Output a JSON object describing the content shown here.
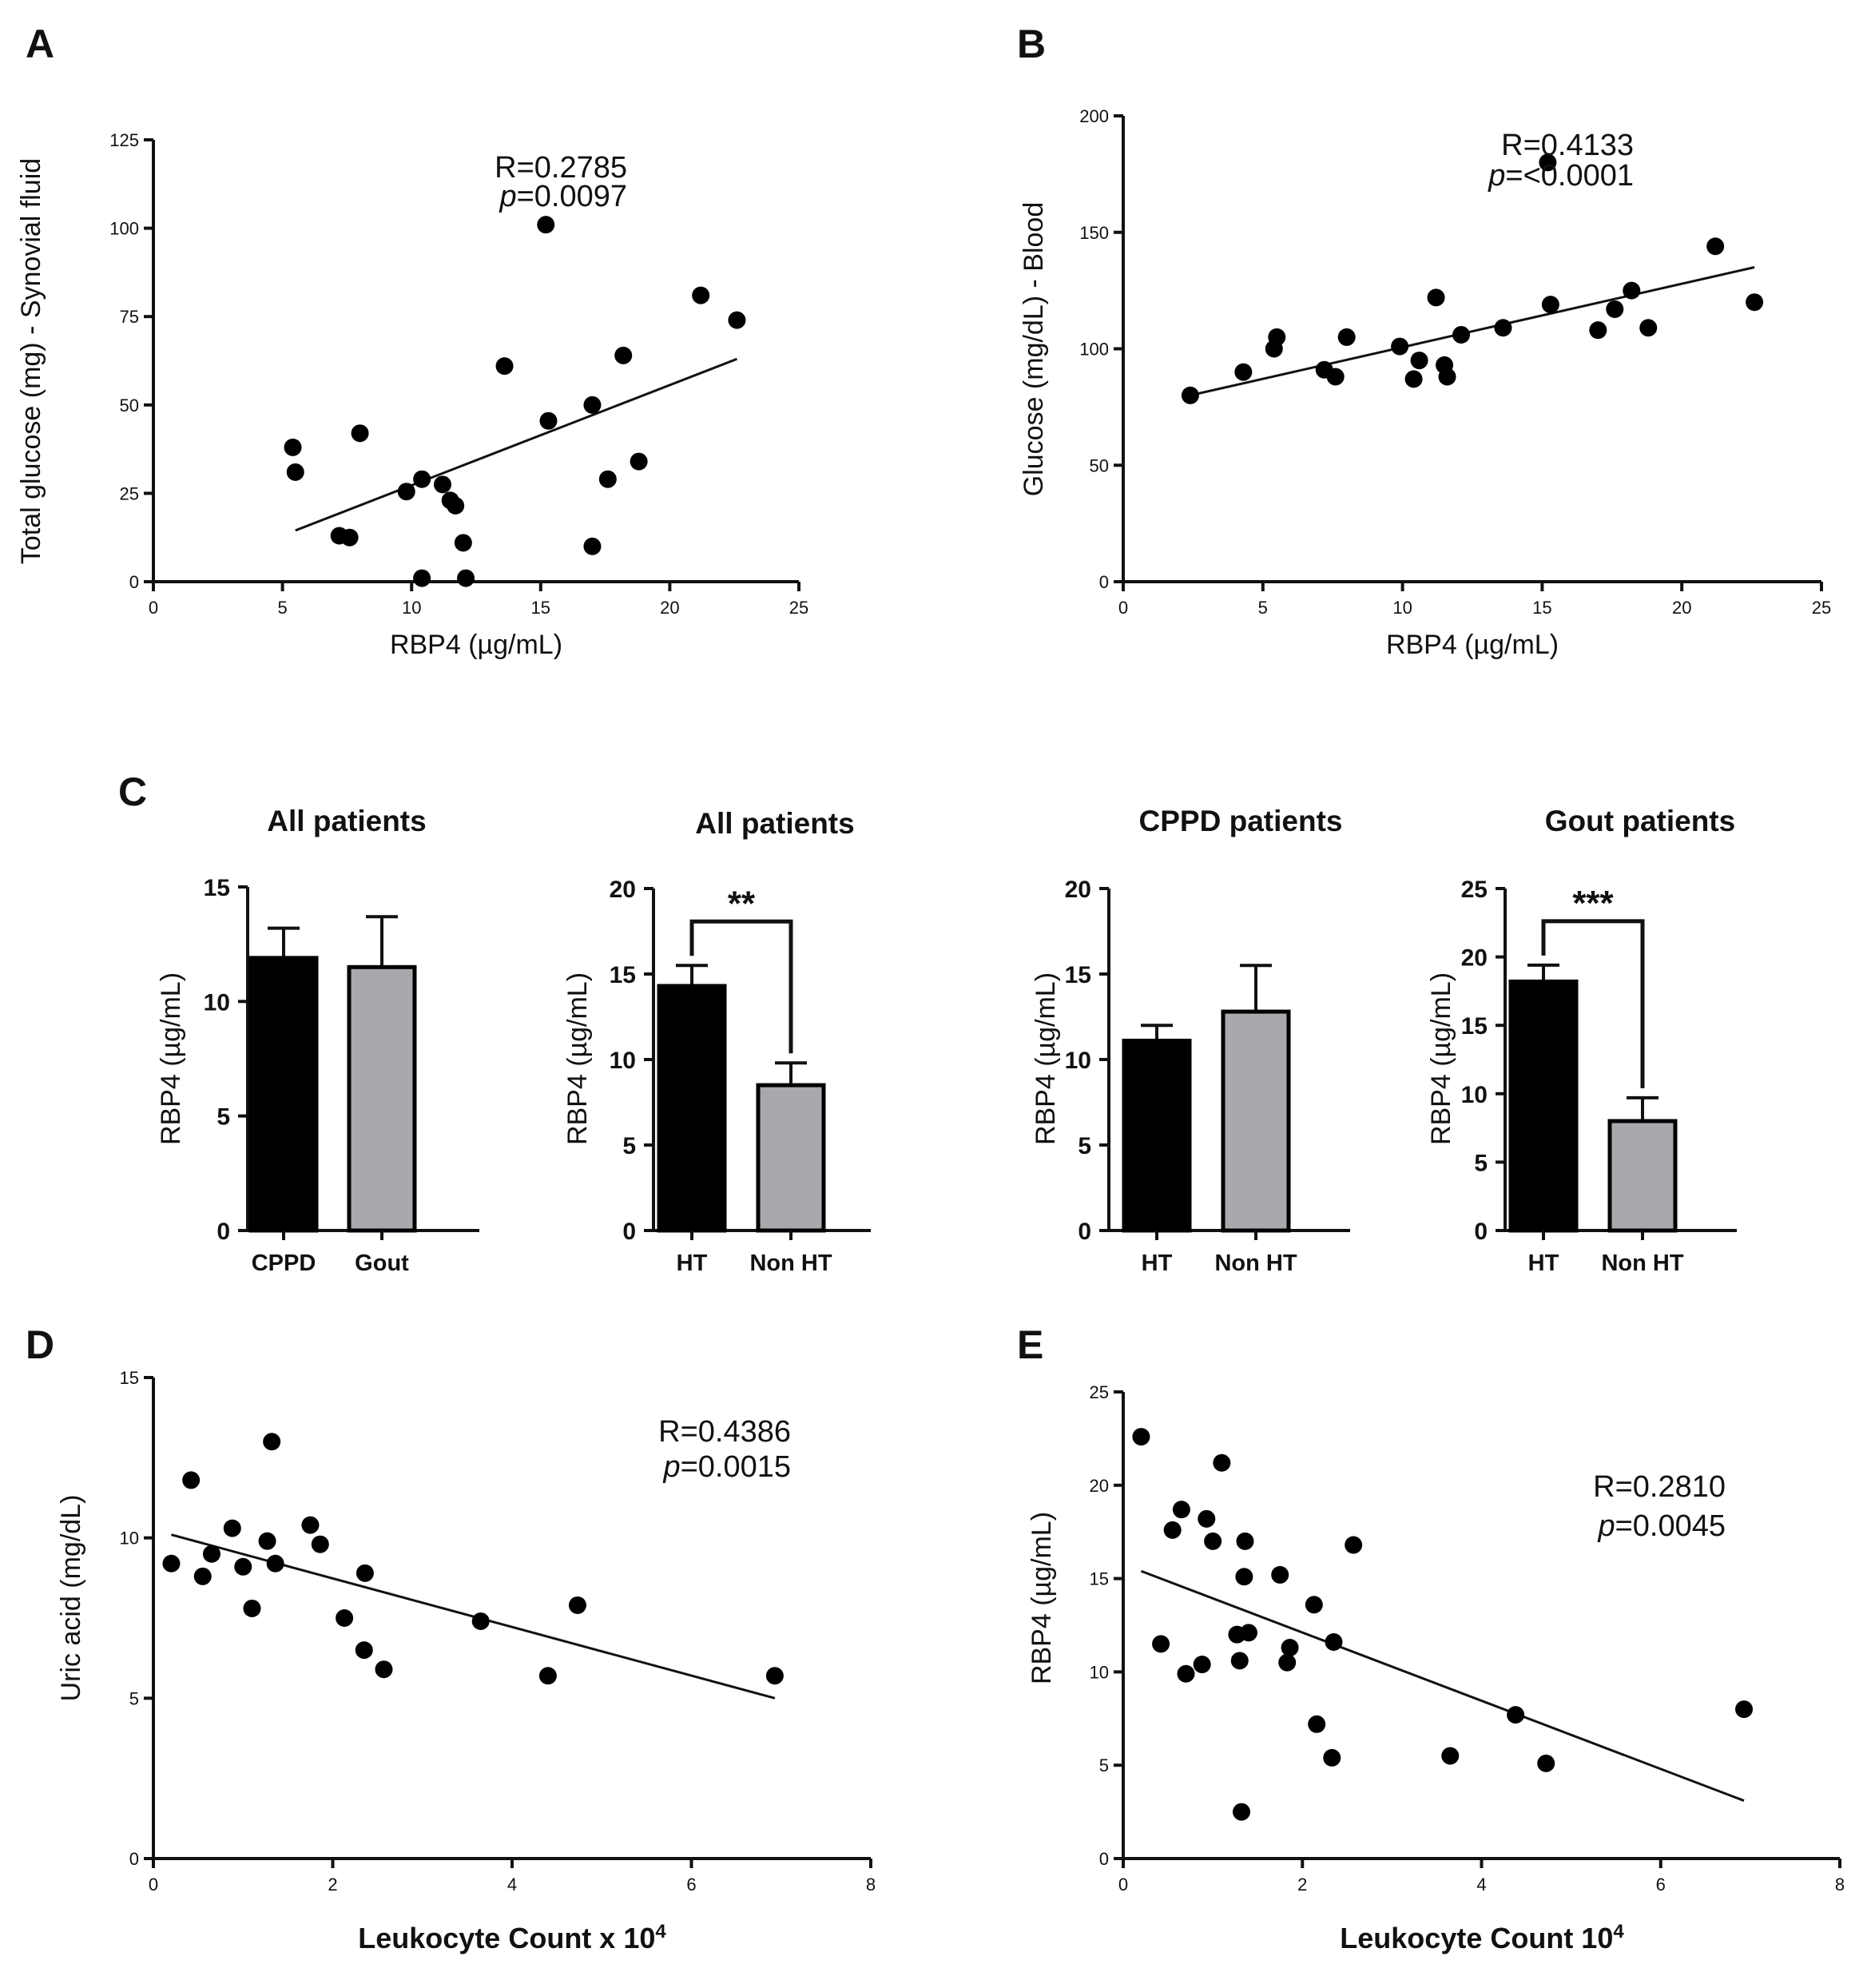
{
  "chart_data": [
    {
      "panel": "A",
      "type": "scatter",
      "xlabel": "RBP4 (µg/mL)",
      "ylabel": "Total glucose (mg) - Synovial fluid",
      "xlim": [
        0,
        25
      ],
      "ylim": [
        0,
        125
      ],
      "xticks": [
        "0",
        "5",
        "10",
        "15",
        "20",
        "25"
      ],
      "yticks": [
        "0",
        "25",
        "50",
        "75",
        "100",
        "125"
      ],
      "points": [
        [
          5.4,
          38
        ],
        [
          5.5,
          31
        ],
        [
          7.2,
          13
        ],
        [
          7.6,
          12.5
        ],
        [
          8,
          42
        ],
        [
          9.8,
          25.5
        ],
        [
          10.4,
          29
        ],
        [
          10.4,
          1
        ],
        [
          11.2,
          27.5
        ],
        [
          11.5,
          23
        ],
        [
          11.7,
          21.5
        ],
        [
          12,
          11
        ],
        [
          12.1,
          1
        ],
        [
          13.6,
          61
        ],
        [
          15.2,
          101
        ],
        [
          15.3,
          45.5
        ],
        [
          17,
          50
        ],
        [
          17,
          10
        ],
        [
          17.6,
          29
        ],
        [
          18.2,
          64
        ],
        [
          18.8,
          34
        ],
        [
          21.2,
          81
        ],
        [
          22.6,
          74
        ]
      ],
      "fit": [
        [
          5.5,
          14.5
        ],
        [
          22.6,
          63
        ]
      ],
      "stats": {
        "r": "R=0.2785",
        "p_sym": "p",
        "p_val": "=0.0097"
      }
    },
    {
      "panel": "B",
      "type": "scatter",
      "xlabel": "RBP4 (µg/mL)",
      "ylabel": "Glucose (mg/dL) - Blood",
      "xlim": [
        0,
        25
      ],
      "ylim": [
        0,
        200
      ],
      "xticks": [
        "0",
        "5",
        "10",
        "15",
        "20",
        "25"
      ],
      "yticks": [
        "0",
        "50",
        "100",
        "150",
        "200"
      ],
      "points": [
        [
          2.4,
          80
        ],
        [
          4.3,
          90
        ],
        [
          5.4,
          100
        ],
        [
          5.5,
          105
        ],
        [
          7.2,
          91
        ],
        [
          7.6,
          88
        ],
        [
          8,
          105
        ],
        [
          9.9,
          101
        ],
        [
          10.4,
          87
        ],
        [
          10.6,
          95
        ],
        [
          11.2,
          122
        ],
        [
          11.5,
          93
        ],
        [
          11.6,
          88
        ],
        [
          12.1,
          106
        ],
        [
          13.6,
          109
        ],
        [
          15.2,
          180
        ],
        [
          15.3,
          119
        ],
        [
          17,
          108
        ],
        [
          17.6,
          117
        ],
        [
          18.2,
          125
        ],
        [
          18.8,
          109
        ],
        [
          21.2,
          144
        ],
        [
          22.6,
          120
        ]
      ],
      "fit": [
        [
          2.4,
          80
        ],
        [
          22.6,
          135
        ]
      ],
      "stats": {
        "r": "R=0.4133",
        "p_sym": "p",
        "p_val": "=<0.0001"
      }
    },
    {
      "panel": "C1",
      "type": "bar",
      "title": "All patients",
      "ylabel": "RBP4 (µg/mL)",
      "ylim": [
        0,
        15
      ],
      "yticks": [
        "0",
        "5",
        "10",
        "15"
      ],
      "categories": [
        "CPPD",
        "Gout"
      ],
      "values": [
        11.9,
        11.5
      ],
      "errors": [
        1.3,
        2.2
      ],
      "colors": [
        "#000000",
        "#a8a8ad"
      ],
      "significance": ""
    },
    {
      "panel": "C2",
      "type": "bar",
      "title": "All patients",
      "ylabel": "RBP4 (µg/mL)",
      "ylim": [
        0,
        20
      ],
      "yticks": [
        "0",
        "5",
        "10",
        "15",
        "20"
      ],
      "categories": [
        "HT",
        "Non HT"
      ],
      "values": [
        14.3,
        8.5
      ],
      "errors": [
        1.2,
        1.3
      ],
      "colors": [
        "#000000",
        "#a8a8ad"
      ],
      "significance": "**"
    },
    {
      "panel": "C3",
      "type": "bar",
      "title": "CPPD patients",
      "ylabel": "RBP4 (µg/mL)",
      "ylim": [
        0,
        20
      ],
      "yticks": [
        "0",
        "5",
        "10",
        "15",
        "20"
      ],
      "categories": [
        "HT",
        "Non HT"
      ],
      "values": [
        11.1,
        12.8
      ],
      "errors": [
        0.9,
        2.7
      ],
      "colors": [
        "#000000",
        "#a8a8ad"
      ],
      "significance": ""
    },
    {
      "panel": "C4",
      "type": "bar",
      "title": "Gout patients",
      "ylabel": "RBP4 (µg/mL)",
      "ylim": [
        0,
        25
      ],
      "yticks": [
        "0",
        "5",
        "10",
        "15",
        "20",
        "25"
      ],
      "categories": [
        "HT",
        "Non HT"
      ],
      "values": [
        18.2,
        8
      ],
      "errors": [
        1.2,
        1.7
      ],
      "colors": [
        "#000000",
        "#a8a8ad"
      ],
      "significance": "***"
    },
    {
      "panel": "D",
      "type": "scatter",
      "xlabel": "Leukocyte Count  x 10",
      "xlabel_sup": "4",
      "ylabel": "Uric acid (mg/dL)",
      "xlim": [
        0,
        8
      ],
      "ylim": [
        0,
        15
      ],
      "xticks": [
        "0",
        "2",
        "4",
        "6",
        "8"
      ],
      "yticks": [
        "0",
        "5",
        "10",
        "15"
      ],
      "points": [
        [
          0.2,
          9.2
        ],
        [
          0.42,
          11.8
        ],
        [
          0.55,
          8.8
        ],
        [
          0.65,
          9.5
        ],
        [
          0.88,
          10.3
        ],
        [
          1,
          9.1
        ],
        [
          1.1,
          7.8
        ],
        [
          1.27,
          9.9
        ],
        [
          1.32,
          13
        ],
        [
          1.36,
          9.2
        ],
        [
          1.75,
          10.4
        ],
        [
          1.86,
          9.8
        ],
        [
          2.13,
          7.5
        ],
        [
          2.35,
          6.5
        ],
        [
          2.36,
          8.9
        ],
        [
          2.57,
          5.9
        ],
        [
          3.65,
          7.4
        ],
        [
          4.4,
          5.7
        ],
        [
          4.73,
          7.9
        ],
        [
          6.93,
          5.7
        ]
      ],
      "fit": [
        [
          0.2,
          10.1
        ],
        [
          6.93,
          5
        ]
      ],
      "stats": {
        "r": "R=0.4386",
        "p_sym": "p",
        "p_val": "=0.0015"
      }
    },
    {
      "panel": "E",
      "type": "scatter",
      "xlabel": "Leukocyte Count 10",
      "xlabel_sup": "4",
      "ylabel": "RBP4 (µg/mL)",
      "xlim": [
        0,
        8
      ],
      "ylim": [
        0,
        25
      ],
      "xticks": [
        "0",
        "2",
        "4",
        "6",
        "8"
      ],
      "yticks": [
        "0",
        "5",
        "10",
        "15",
        "20",
        "25"
      ],
      "points": [
        [
          0.2,
          22.6
        ],
        [
          0.42,
          11.5
        ],
        [
          0.55,
          17.6
        ],
        [
          0.65,
          18.7
        ],
        [
          0.7,
          9.9
        ],
        [
          0.88,
          10.4
        ],
        [
          0.93,
          18.2
        ],
        [
          1,
          17
        ],
        [
          1.1,
          21.2
        ],
        [
          1.27,
          12
        ],
        [
          1.3,
          10.6
        ],
        [
          1.32,
          2.5
        ],
        [
          1.35,
          15.1
        ],
        [
          1.36,
          17
        ],
        [
          1.4,
          12.1
        ],
        [
          1.75,
          15.2
        ],
        [
          1.83,
          10.5
        ],
        [
          1.86,
          11.3
        ],
        [
          2.13,
          13.6
        ],
        [
          2.16,
          7.2
        ],
        [
          2.33,
          5.4
        ],
        [
          2.35,
          11.6
        ],
        [
          2.57,
          16.8
        ],
        [
          3.65,
          5.5
        ],
        [
          4.38,
          7.7
        ],
        [
          4.72,
          5.1
        ],
        [
          6.93,
          8
        ]
      ],
      "fit": [
        [
          0.2,
          15.4
        ],
        [
          6.93,
          3.1
        ]
      ],
      "stats": {
        "r": "R=0.2810",
        "p_sym": "p",
        "p_val": "=0.0045"
      }
    }
  ],
  "panel_labels": {
    "A": "A",
    "B": "B",
    "C": "C",
    "D": "D",
    "E": "E"
  }
}
